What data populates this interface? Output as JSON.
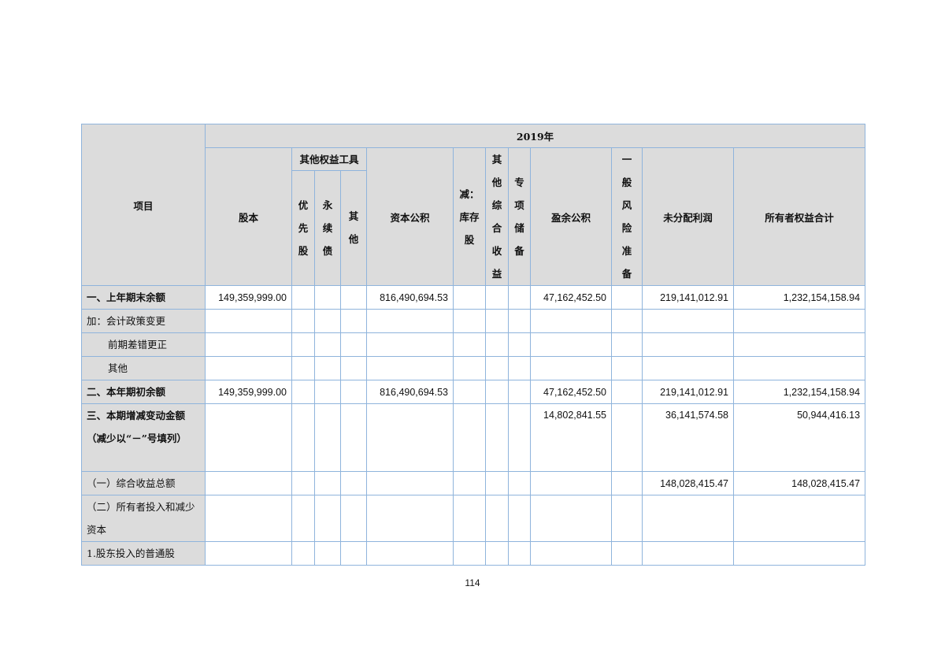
{
  "header": {
    "item": "项目",
    "year": "2019年",
    "equity_tools": "其他权益工具",
    "columns": [
      "股本",
      "优先股",
      "永续债",
      "其他",
      "资本公积",
      "减：库存股",
      "其他综合收益",
      "专项储备",
      "盈余公积",
      "一般风险准备",
      "未分配利润",
      "所有者权益合计"
    ]
  },
  "rows": [
    {
      "label": "一、上年期末余额",
      "values": [
        "149,359,999.00",
        "",
        "",
        "",
        "816,490,694.53",
        "",
        "",
        "",
        "47,162,452.50",
        "",
        "219,141,012.91",
        "1,232,154,158.94"
      ]
    },
    {
      "label": "加：会计政策变更",
      "values": [
        "",
        "",
        "",
        "",
        "",
        "",
        "",
        "",
        "",
        "",
        "",
        ""
      ]
    },
    {
      "label": "前期差错更正",
      "values": [
        "",
        "",
        "",
        "",
        "",
        "",
        "",
        "",
        "",
        "",
        "",
        ""
      ]
    },
    {
      "label": "其他",
      "values": [
        "",
        "",
        "",
        "",
        "",
        "",
        "",
        "",
        "",
        "",
        "",
        ""
      ]
    },
    {
      "label": "二、本年期初余额",
      "values": [
        "149,359,999.00",
        "",
        "",
        "",
        "816,490,694.53",
        "",
        "",
        "",
        "47,162,452.50",
        "",
        "219,141,012.91",
        "1,232,154,158.94"
      ]
    },
    {
      "label": "三、本期增减变动金额（减少以“－”号填列）",
      "values": [
        "",
        "",
        "",
        "",
        "",
        "",
        "",
        "",
        "14,802,841.55",
        "",
        "36,141,574.58",
        "50,944,416.13"
      ]
    },
    {
      "label": "（一）综合收益总额",
      "values": [
        "",
        "",
        "",
        "",
        "",
        "",
        "",
        "",
        "",
        "",
        "148,028,415.47",
        "148,028,415.47"
      ]
    },
    {
      "label": "（二）所有者投入和减少资本",
      "values": [
        "",
        "",
        "",
        "",
        "",
        "",
        "",
        "",
        "",
        "",
        "",
        ""
      ]
    },
    {
      "label": "1.股东投入的普通股",
      "values": [
        "",
        "",
        "",
        "",
        "",
        "",
        "",
        "",
        "",
        "",
        "",
        ""
      ]
    }
  ],
  "page_number": "114"
}
